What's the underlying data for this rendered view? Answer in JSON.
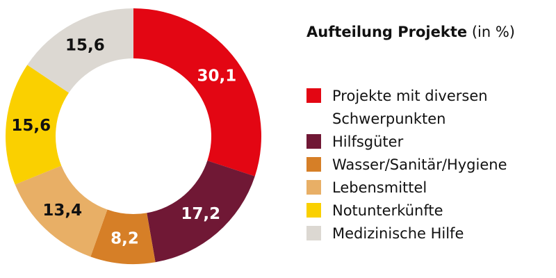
{
  "title": {
    "main": "Aufteilung Projekte",
    "sub": "(in %)"
  },
  "chart_data": {
    "type": "pie",
    "subtype": "donut",
    "title": "Aufteilung Projekte (in %)",
    "categories": [
      "Projekte mit diversen Schwerpunkten",
      "Hilfsgüter",
      "Wasser/Sanitär/Hygiene",
      "Lebensmittel",
      "Notunterkünfte",
      "Medizinische Hilfe"
    ],
    "values": [
      30.1,
      17.2,
      8.2,
      13.4,
      15.6,
      15.6
    ],
    "value_labels": [
      "30,1",
      "17,2",
      "8,2",
      "13,4",
      "15,6",
      "15,6"
    ],
    "colors": [
      "#e30613",
      "#701835",
      "#d67f27",
      "#e8af66",
      "#fad000",
      "#dcd8d2"
    ],
    "label_colors": [
      "#ffffff",
      "#ffffff",
      "#ffffff",
      "#111111",
      "#111111",
      "#111111"
    ],
    "legend_position": "right",
    "start": "top, clockwise"
  },
  "legend": {
    "items": [
      {
        "label": "Projekte mit diversen Schwerpunkten",
        "color": "#e30613"
      },
      {
        "label": "Hilfsgüter",
        "color": "#701835"
      },
      {
        "label": "Wasser/Sanitär/Hygiene",
        "color": "#d67f27"
      },
      {
        "label": "Lebensmittel",
        "color": "#e8af66"
      },
      {
        "label": "Notunterkünfte",
        "color": "#fad000"
      },
      {
        "label": "Medizinische Hilfe",
        "color": "#dcd8d2"
      }
    ]
  }
}
